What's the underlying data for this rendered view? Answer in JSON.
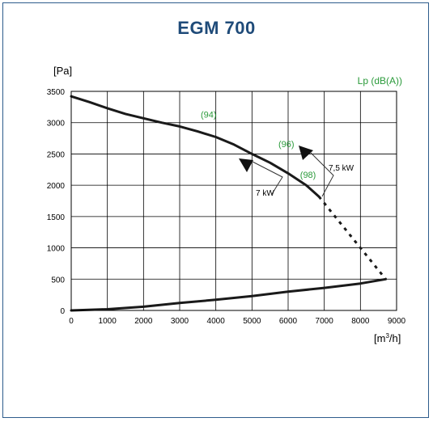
{
  "chart_data": {
    "type": "line",
    "title": "EGM 700",
    "ylabel": "[Pa]",
    "xlabel_main": "[m",
    "xlabel_sup": "3",
    "xlabel_end": "/h]",
    "secondary_label": "Lp (dB(A))",
    "xlim": [
      0,
      9000
    ],
    "ylim": [
      0,
      3500
    ],
    "x_ticks": [
      "0",
      "1000",
      "2000",
      "3000",
      "4000",
      "5000",
      "6000",
      "7000",
      "8000",
      "9000"
    ],
    "y_ticks": [
      "0",
      "500",
      "1000",
      "1500",
      "2000",
      "2500",
      "3000",
      "3500"
    ],
    "series": [
      {
        "key": "fan_curve",
        "style": "solid",
        "x": [
          0,
          500,
          1000,
          1500,
          2000,
          2500,
          3000,
          3500,
          4000,
          4500,
          5000,
          5500,
          6000,
          6500,
          6850
        ],
        "y": [
          3420,
          3330,
          3230,
          3140,
          3070,
          3000,
          2940,
          2860,
          2770,
          2650,
          2500,
          2360,
          2190,
          2000,
          1820
        ]
      },
      {
        "key": "fan_curve_extension",
        "style": "dashed",
        "x": [
          6850,
          8700
        ],
        "y": [
          1820,
          500
        ]
      },
      {
        "key": "system_curve",
        "style": "solid",
        "x": [
          0,
          1000,
          2000,
          3000,
          4000,
          5000,
          6000,
          7000,
          8000,
          8700
        ],
        "y": [
          0,
          20,
          60,
          120,
          170,
          230,
          300,
          360,
          430,
          500
        ]
      }
    ],
    "sound_levels": [
      {
        "label": "(94)",
        "x": 3800,
        "y": 3080
      },
      {
        "label": "(96)",
        "x": 5950,
        "y": 2610
      },
      {
        "label": "(98)",
        "x": 6550,
        "y": 2120
      }
    ],
    "power_markers": [
      {
        "label": "7 kW"
      },
      {
        "label": "7,5 kW"
      }
    ],
    "colors": {
      "title": "#1f4b79",
      "frame": "#2e5c8c",
      "sound_level": "#2a9a3a",
      "curve": "#1a1a1a",
      "axis": "#000000"
    },
    "grid": true
  }
}
